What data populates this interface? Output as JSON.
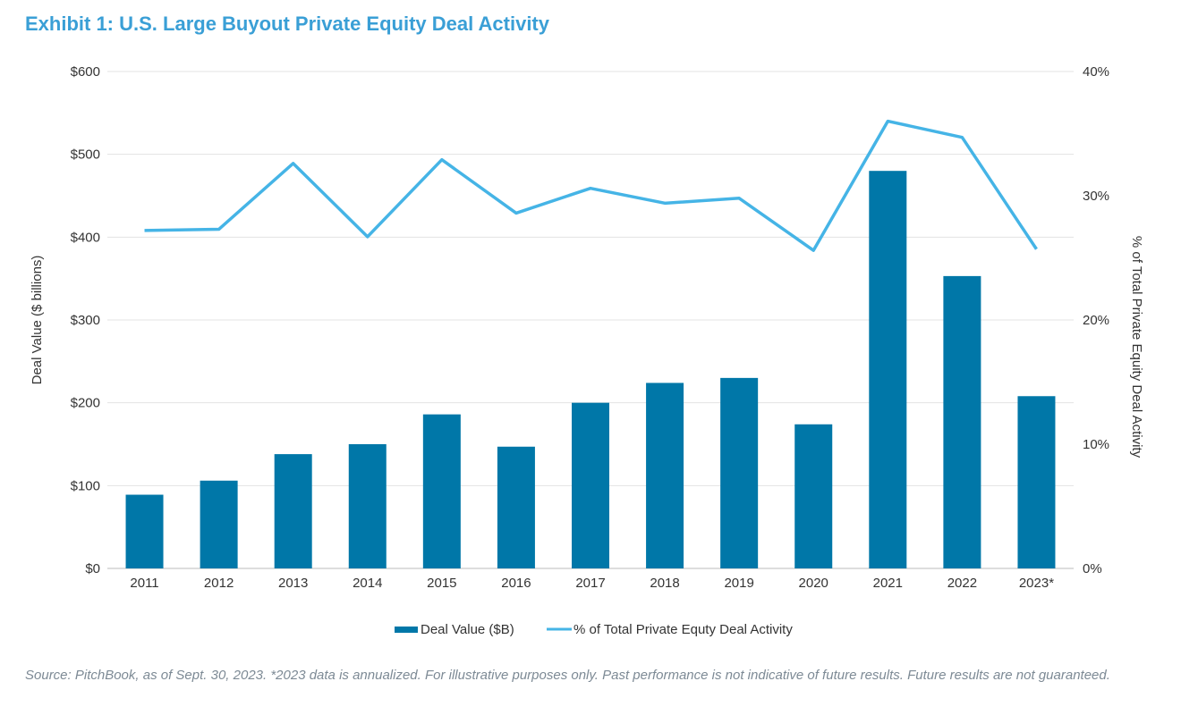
{
  "title": "Exhibit 1: U.S. Large Buyout Private Equity Deal Activity",
  "source": "Source: PitchBook, as of Sept. 30, 2023. *2023 data is annualized. For illustrative purposes only. Past performance is not indicative of future results. Future results are not guaranteed.",
  "chart_data": {
    "type": "bar+line",
    "categories": [
      "2011",
      "2012",
      "2013",
      "2014",
      "2015",
      "2016",
      "2017",
      "2018",
      "2019",
      "2020",
      "2021",
      "2022",
      "2023*"
    ],
    "series": [
      {
        "name": "Deal Value ($B)",
        "type": "bar",
        "axis": "left",
        "color": "#0077a8",
        "values": [
          89,
          106,
          138,
          150,
          186,
          147,
          200,
          224,
          230,
          174,
          480,
          353,
          208
        ]
      },
      {
        "name": "% of Total Private Equty Deal Activity",
        "type": "line",
        "axis": "right",
        "color": "#45b4e6",
        "values": [
          27.2,
          27.3,
          32.6,
          26.7,
          32.9,
          28.6,
          30.6,
          29.4,
          29.8,
          25.6,
          36.0,
          34.7,
          25.7
        ]
      }
    ],
    "ylabel": "Deal Value ($ billions)",
    "y2label": "% of Total Private Equity Deal Activity",
    "ylim": [
      0,
      600
    ],
    "y2lim": [
      0,
      40
    ],
    "yticks": [
      "$0",
      "$100",
      "$200",
      "$300",
      "$400",
      "$500",
      "$600"
    ],
    "y2ticks": [
      "0%",
      "10%",
      "20%",
      "30%",
      "40%"
    ],
    "grid": true,
    "legend": "bottom"
  }
}
